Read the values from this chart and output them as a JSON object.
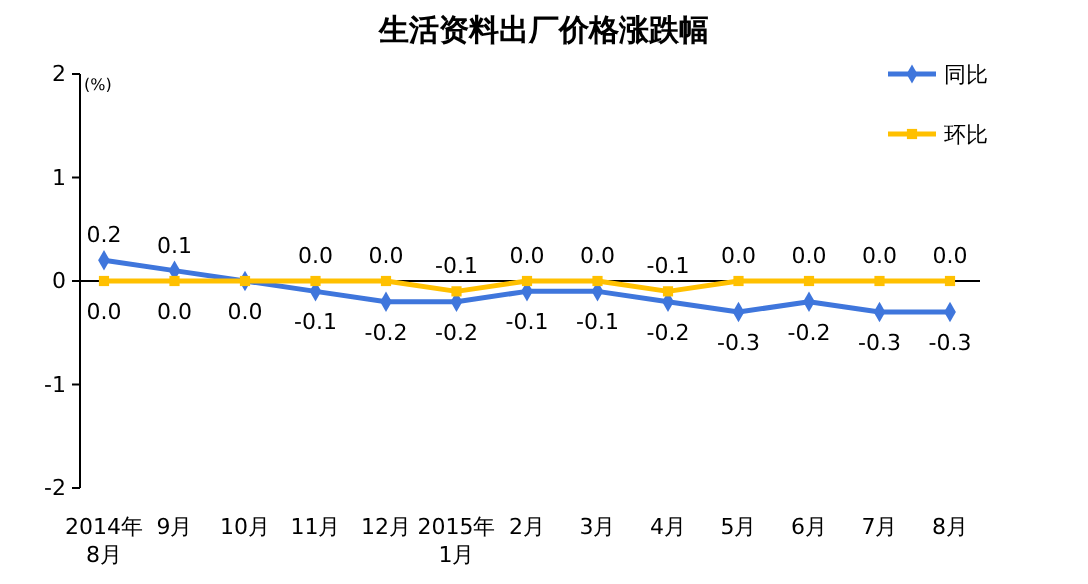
{
  "chart_data": {
    "type": "line",
    "title": "生活资料出厂价格涨跌幅",
    "ylabel": "(%)",
    "categories": [
      "2014年\n8月",
      "9月",
      "10月",
      "11月",
      "12月",
      "2015年\n1月",
      "2月",
      "3月",
      "4月",
      "5月",
      "6月",
      "7月",
      "8月"
    ],
    "ylim": [
      -2,
      2
    ],
    "yticks": [
      -2,
      -1,
      0,
      1,
      2
    ],
    "legend": "top right",
    "series": [
      {
        "name": "同比",
        "color": "#3f76dc",
        "marker": "diamond",
        "values": [
          0.2,
          0.1,
          0.0,
          -0.1,
          -0.2,
          -0.2,
          -0.1,
          -0.1,
          -0.2,
          -0.3,
          -0.2,
          -0.3,
          -0.3
        ],
        "value_labels": [
          "0.2",
          "0.1",
          null,
          "-0.1",
          "-0.2",
          "-0.2",
          "-0.1",
          "-0.1",
          "-0.2",
          "-0.3",
          "-0.2",
          "-0.3",
          "-0.3"
        ]
      },
      {
        "name": "环比",
        "color": "#ffc000",
        "marker": "square",
        "values": [
          0.0,
          0.0,
          0.0,
          0.0,
          0.0,
          -0.1,
          0.0,
          0.0,
          -0.1,
          0.0,
          0.0,
          0.0,
          0.0
        ],
        "value_labels": [
          "0.0",
          "0.0",
          "0.0",
          "0.0",
          "0.0",
          "-0.1",
          "0.0",
          "0.0",
          "-0.1",
          "0.0",
          "0.0",
          "0.0",
          "0.0"
        ]
      }
    ]
  }
}
